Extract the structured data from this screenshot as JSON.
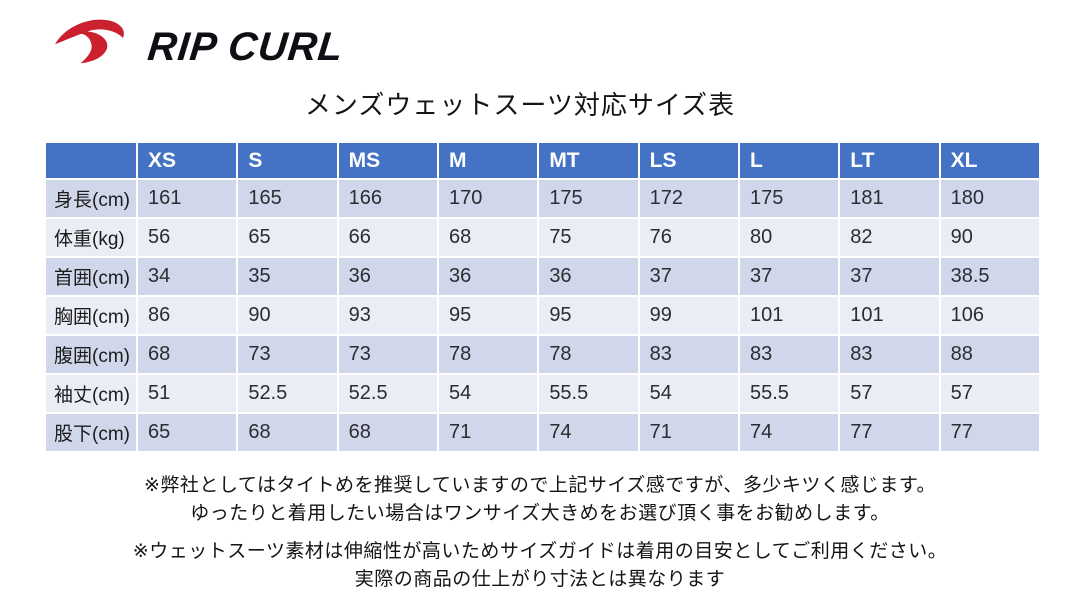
{
  "brand": {
    "name": "RIP CURL",
    "logo_color": "#CB202D",
    "text_color": "#0E0E14"
  },
  "title": "メンズウェットスーツ対応サイズ表",
  "table": {
    "columns": [
      "XS",
      "S",
      "MS",
      "M",
      "MT",
      "LS",
      "L",
      "LT",
      "XL"
    ],
    "rows": [
      {
        "label": "身長(cm)",
        "values": [
          "161",
          "165",
          "166",
          "170",
          "175",
          "172",
          "175",
          "181",
          "180"
        ]
      },
      {
        "label": "体重(kg)",
        "values": [
          "56",
          "65",
          "66",
          "68",
          "75",
          "76",
          "80",
          "82",
          "90"
        ]
      },
      {
        "label": "首囲(cm)",
        "values": [
          "34",
          "35",
          "36",
          "36",
          "36",
          "37",
          "37",
          "37",
          "38.5"
        ]
      },
      {
        "label": "胸囲(cm)",
        "values": [
          "86",
          "90",
          "93",
          "95",
          "95",
          "99",
          "101",
          "101",
          "106"
        ]
      },
      {
        "label": "腹囲(cm)",
        "values": [
          "68",
          "73",
          "73",
          "78",
          "78",
          "83",
          "83",
          "83",
          "88"
        ]
      },
      {
        "label": "袖丈(cm)",
        "values": [
          "51",
          "52.5",
          "52.5",
          "54",
          "55.5",
          "54",
          "55.5",
          "57",
          "57"
        ]
      },
      {
        "label": "股下(cm)",
        "values": [
          "65",
          "68",
          "68",
          "71",
          "74",
          "71",
          "74",
          "77",
          "77"
        ]
      }
    ],
    "colors": {
      "header_bg": "#4472C4",
      "header_text": "#FFFFFF",
      "band_dark": "#D1D7EA",
      "band_light": "#EAECF6"
    }
  },
  "notes": [
    {
      "lines": [
        "※弊社としてはタイトめを推奨していますので上記サイズ感ですが、多少キツく感じます。",
        "ゆったりと着用したい場合はワンサイズ大きめをお選び頂く事をお勧めします。"
      ]
    },
    {
      "lines": [
        "※ウェットスーツ素材は伸縮性が高いためサイズガイドは着用の目安としてご利用ください。",
        "実際の商品の仕上がり寸法とは異なります"
      ]
    }
  ]
}
